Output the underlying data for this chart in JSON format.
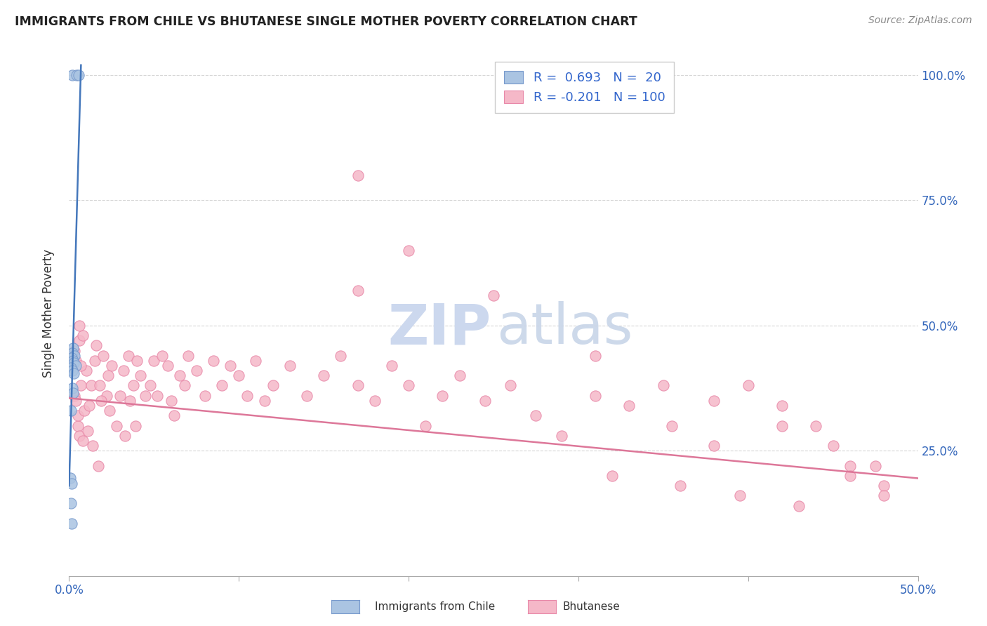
{
  "title": "IMMIGRANTS FROM CHILE VS BHUTANESE SINGLE MOTHER POVERTY CORRELATION CHART",
  "source": "Source: ZipAtlas.com",
  "ylabel": "Single Mother Poverty",
  "xlim": [
    0.0,
    0.5
  ],
  "ylim": [
    0.0,
    1.05
  ],
  "chile_color": "#aac4e2",
  "chile_edge": "#7799cc",
  "bhutan_color": "#f5b8c8",
  "bhutan_edge": "#e888a8",
  "line_chile_color": "#4477bb",
  "line_bhutan_color": "#dd7799",
  "watermark_zip_color": "#ccd8ee",
  "watermark_atlas_color": "#c8d5e8",
  "chile_x": [
    0.0021,
    0.0042,
    0.0058,
    0.0025,
    0.0018,
    0.0031,
    0.0014,
    0.0022,
    0.0028,
    0.0038,
    0.0012,
    0.0019,
    0.0026,
    0.0017,
    0.0024,
    0.0011,
    0.0009,
    0.0016,
    0.0008,
    0.0013
  ],
  "chile_y": [
    1.0,
    1.0,
    1.0,
    0.455,
    0.445,
    0.44,
    0.435,
    0.43,
    0.425,
    0.42,
    0.415,
    0.41,
    0.405,
    0.375,
    0.365,
    0.33,
    0.145,
    0.105,
    0.195,
    0.185
  ],
  "chile_line_x": [
    0.0,
    0.007
  ],
  "chile_line_y": [
    0.18,
    1.02
  ],
  "bhutan_line_x": [
    0.0,
    0.5
  ],
  "bhutan_line_y": [
    0.355,
    0.195
  ],
  "bhutan_x": [
    0.003,
    0.005,
    0.004,
    0.006,
    0.007,
    0.004,
    0.006,
    0.005,
    0.003,
    0.008,
    0.01,
    0.009,
    0.007,
    0.011,
    0.013,
    0.012,
    0.015,
    0.008,
    0.014,
    0.006,
    0.02,
    0.018,
    0.022,
    0.025,
    0.019,
    0.023,
    0.028,
    0.016,
    0.024,
    0.017,
    0.032,
    0.03,
    0.035,
    0.038,
    0.033,
    0.04,
    0.036,
    0.042,
    0.039,
    0.045,
    0.05,
    0.048,
    0.055,
    0.052,
    0.058,
    0.06,
    0.065,
    0.062,
    0.068,
    0.07,
    0.075,
    0.08,
    0.085,
    0.09,
    0.095,
    0.1,
    0.105,
    0.11,
    0.115,
    0.12,
    0.13,
    0.14,
    0.15,
    0.16,
    0.17,
    0.18,
    0.19,
    0.2,
    0.21,
    0.22,
    0.23,
    0.245,
    0.26,
    0.275,
    0.29,
    0.31,
    0.33,
    0.355,
    0.38,
    0.4,
    0.42,
    0.44,
    0.46,
    0.48,
    0.31,
    0.35,
    0.38,
    0.42,
    0.45,
    0.475,
    0.32,
    0.36,
    0.395,
    0.43,
    0.46,
    0.48,
    0.17,
    0.2,
    0.25,
    0.17
  ],
  "bhutan_y": [
    0.36,
    0.3,
    0.43,
    0.47,
    0.38,
    0.35,
    0.28,
    0.32,
    0.45,
    0.27,
    0.41,
    0.33,
    0.42,
    0.29,
    0.38,
    0.34,
    0.43,
    0.48,
    0.26,
    0.5,
    0.44,
    0.38,
    0.36,
    0.42,
    0.35,
    0.4,
    0.3,
    0.46,
    0.33,
    0.22,
    0.41,
    0.36,
    0.44,
    0.38,
    0.28,
    0.43,
    0.35,
    0.4,
    0.3,
    0.36,
    0.43,
    0.38,
    0.44,
    0.36,
    0.42,
    0.35,
    0.4,
    0.32,
    0.38,
    0.44,
    0.41,
    0.36,
    0.43,
    0.38,
    0.42,
    0.4,
    0.36,
    0.43,
    0.35,
    0.38,
    0.42,
    0.36,
    0.4,
    0.44,
    0.38,
    0.35,
    0.42,
    0.38,
    0.3,
    0.36,
    0.4,
    0.35,
    0.38,
    0.32,
    0.28,
    0.36,
    0.34,
    0.3,
    0.26,
    0.38,
    0.34,
    0.3,
    0.22,
    0.18,
    0.44,
    0.38,
    0.35,
    0.3,
    0.26,
    0.22,
    0.2,
    0.18,
    0.16,
    0.14,
    0.2,
    0.16,
    0.8,
    0.65,
    0.56,
    0.57
  ]
}
